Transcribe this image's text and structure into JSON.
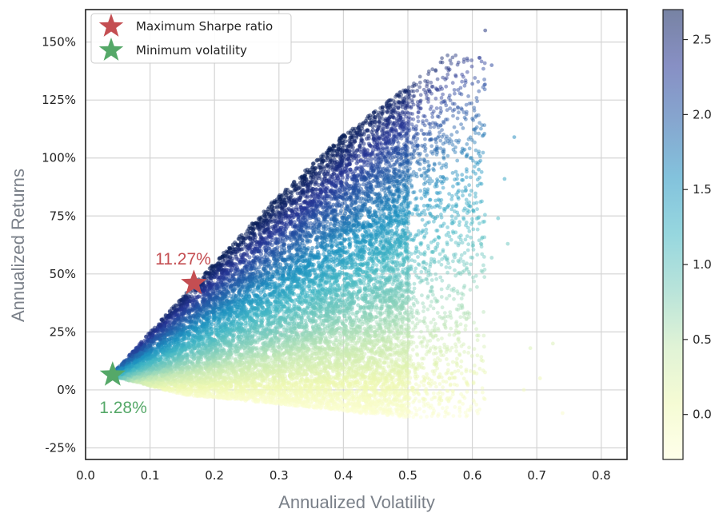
{
  "chart_data": {
    "type": "scatter",
    "title": "",
    "xlabel": "Annualized Volatility",
    "ylabel": "Annualized Returns",
    "xlim": [
      0.0,
      0.84
    ],
    "ylim": [
      -0.3,
      1.64
    ],
    "x_ticks": [
      0.0,
      0.1,
      0.2,
      0.3,
      0.4,
      0.5,
      0.6,
      0.7,
      0.8
    ],
    "x_tick_labels": [
      "0.0",
      "0.1",
      "0.2",
      "0.3",
      "0.4",
      "0.5",
      "0.6",
      "0.7",
      "0.8"
    ],
    "y_ticks": [
      -0.25,
      0.0,
      0.25,
      0.5,
      0.75,
      1.0,
      1.25,
      1.5
    ],
    "y_tick_labels": [
      "-25%",
      "0%",
      "25%",
      "50%",
      "75%",
      "100%",
      "125%",
      "150%"
    ],
    "grid": true,
    "colorbar": {
      "range": [
        -0.3,
        2.7
      ],
      "ticks": [
        0.0,
        0.5,
        1.0,
        1.5,
        2.0,
        2.5
      ],
      "tick_labels": [
        "0.0",
        "0.5",
        "1.0",
        "1.5",
        "2.0",
        "2.5"
      ],
      "colormap": "YlGnBu",
      "stops": [
        "#ffffd9",
        "#edf8b1",
        "#c7e9b4",
        "#7fcdbb",
        "#41b6c4",
        "#1d91c0",
        "#225ea8",
        "#253494",
        "#081d58"
      ]
    },
    "point_cloud": {
      "description": "simulated portfolios",
      "min_vol_point": [
        0.042,
        0.065
      ],
      "max_sharpe_point": [
        0.168,
        0.46
      ],
      "upper_edge": [
        [
          0.042,
          0.07
        ],
        [
          0.1,
          0.25
        ],
        [
          0.2,
          0.55
        ],
        [
          0.3,
          0.84
        ],
        [
          0.4,
          1.1
        ],
        [
          0.5,
          1.31
        ],
        [
          0.56,
          1.45
        ]
      ],
      "lower_edge": [
        [
          0.042,
          0.06
        ],
        [
          0.15,
          -0.02
        ],
        [
          0.3,
          -0.06
        ],
        [
          0.4,
          -0.09
        ],
        [
          0.5,
          -0.12
        ],
        [
          0.6,
          -0.12
        ]
      ],
      "approx_count": 15000
    },
    "legend": {
      "position": "top-left",
      "entries": [
        {
          "label": "Maximum Sharpe ratio",
          "color": "#c44e52",
          "marker": "star"
        },
        {
          "label": "Minimum volatility",
          "color": "#55a868",
          "marker": "star"
        }
      ]
    },
    "annotations": [
      {
        "text": "11.27%",
        "x": 0.168,
        "y": 0.46,
        "color": "#c44e52",
        "placement": "above"
      },
      {
        "text": "1.28%",
        "x": 0.042,
        "y": 0.065,
        "color": "#55a868",
        "placement": "below"
      }
    ]
  }
}
